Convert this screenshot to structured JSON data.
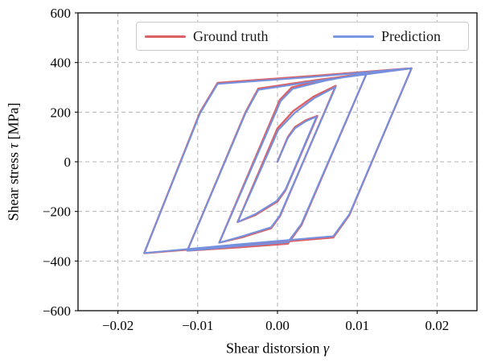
{
  "figure": {
    "background": "#ffffff",
    "grid_color": "#b3b3b3",
    "spine_color": "#1a1a1a"
  },
  "legend": {
    "entries": [
      {
        "label": "Ground truth",
        "color": "#db6164"
      },
      {
        "label": "Prediction",
        "color": "#7b96e0"
      }
    ]
  },
  "axes": {
    "xlabel_prefix": "Shear distorsion ",
    "xlabel_symbol": "γ",
    "ylabel_prefix": "Shear stress ",
    "ylabel_symbol": "τ",
    "ylabel_suffix": " [MPa]"
  },
  "chart_data": {
    "type": "line",
    "title": "",
    "xlabel": "Shear distorsion γ",
    "ylabel": "Shear stress τ [MPa]",
    "xlim": [
      -0.025,
      0.025
    ],
    "ylim": [
      -600,
      600
    ],
    "grid": true,
    "grid_style": "dashed",
    "legend_position": "upper center",
    "x_ticks": {
      "values": [
        -0.02,
        -0.01,
        0.0,
        0.01,
        0.02
      ],
      "labels": [
        "−0.02",
        "−0.01",
        "0.00",
        "0.01",
        "0.02"
      ]
    },
    "y_ticks": {
      "values": [
        600,
        400,
        200,
        0,
        -200,
        -400,
        -600
      ],
      "labels": [
        "600",
        "400",
        "200",
        "0",
        "−200",
        "−400",
        "−600"
      ]
    },
    "series": [
      {
        "name": "Ground truth",
        "color": "#db6164",
        "line_width": 2.4,
        "points": [
          [
            0.0,
            0
          ],
          [
            0.0013,
            100
          ],
          [
            0.0022,
            140
          ],
          [
            0.0036,
            168
          ],
          [
            0.005,
            185
          ],
          [
            0.001,
            -115
          ],
          [
            0.0,
            -160
          ],
          [
            -0.0028,
            -215
          ],
          [
            -0.005,
            -243
          ],
          [
            0.0,
            135
          ],
          [
            0.002,
            205
          ],
          [
            0.0045,
            262
          ],
          [
            0.0073,
            306
          ],
          [
            0.0003,
            -220
          ],
          [
            -0.0008,
            -268
          ],
          [
            -0.0045,
            -305
          ],
          [
            -0.0073,
            -326
          ],
          [
            0.0003,
            250
          ],
          [
            0.0018,
            300
          ],
          [
            0.006,
            332
          ],
          [
            0.0112,
            358
          ],
          [
            0.003,
            -255
          ],
          [
            0.0013,
            -330
          ],
          [
            -0.005,
            -345
          ],
          [
            -0.0113,
            -358
          ],
          [
            -0.004,
            200
          ],
          [
            -0.0024,
            295
          ],
          [
            0.005,
            330
          ],
          [
            0.0168,
            377
          ],
          [
            0.009,
            -215
          ],
          [
            0.007,
            -305
          ],
          [
            -0.005,
            -338
          ],
          [
            -0.0167,
            -368
          ],
          [
            -0.0097,
            200
          ],
          [
            -0.0075,
            318
          ],
          [
            0.0045,
            346
          ],
          [
            0.0168,
            377
          ]
        ]
      },
      {
        "name": "Prediction",
        "color": "#7490de",
        "line_width": 2.1,
        "points": [
          [
            0.0,
            0
          ],
          [
            0.0013,
            96
          ],
          [
            0.0022,
            135
          ],
          [
            0.0036,
            164
          ],
          [
            0.0049,
            182
          ],
          [
            0.001,
            -112
          ],
          [
            -0.0001,
            -158
          ],
          [
            -0.0028,
            -211
          ],
          [
            -0.005,
            -243
          ],
          [
            0.0001,
            128
          ],
          [
            0.0022,
            198
          ],
          [
            0.0046,
            256
          ],
          [
            0.0073,
            302
          ],
          [
            0.0003,
            -216
          ],
          [
            -0.0008,
            -264
          ],
          [
            -0.0045,
            -301
          ],
          [
            -0.0073,
            -326
          ],
          [
            0.0004,
            245
          ],
          [
            0.0019,
            294
          ],
          [
            0.006,
            327
          ],
          [
            0.0112,
            358
          ],
          [
            0.003,
            -250
          ],
          [
            0.0013,
            -324
          ],
          [
            -0.005,
            -340
          ],
          [
            -0.0113,
            -358
          ],
          [
            -0.004,
            196
          ],
          [
            -0.0024,
            290
          ],
          [
            0.005,
            326
          ],
          [
            0.0168,
            377
          ],
          [
            0.009,
            -212
          ],
          [
            0.007,
            -300
          ],
          [
            -0.005,
            -333
          ],
          [
            -0.0167,
            -368
          ],
          [
            -0.0097,
            196
          ],
          [
            -0.0075,
            314
          ],
          [
            0.0045,
            342
          ],
          [
            0.0168,
            377
          ]
        ]
      }
    ]
  }
}
